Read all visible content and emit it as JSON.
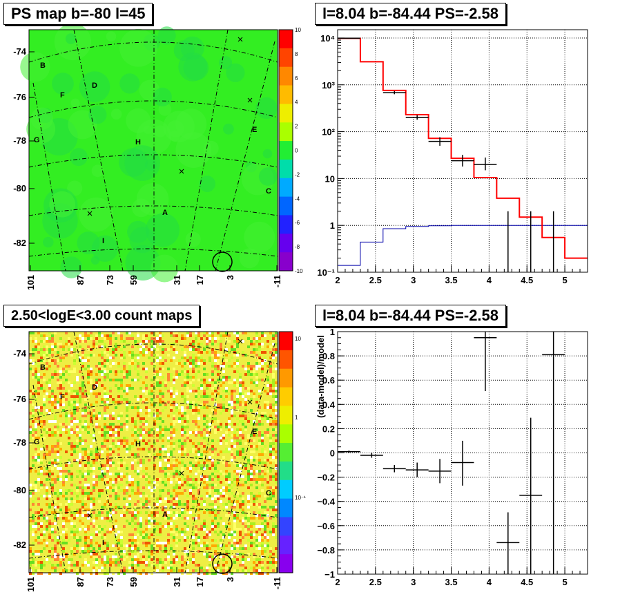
{
  "panels": {
    "ps_map": {
      "title": "PS map b=-80 l=45"
    },
    "spectrum": {
      "title": "l=8.04 b=-84.44 PS=-2.58"
    },
    "count_map": {
      "title": "2.50<logE<3.00 count maps"
    },
    "residual": {
      "title": "l=8.04 b=-84.44 PS=-2.58"
    }
  },
  "colors": {
    "map_green": "#22ee33",
    "model_red": "#ff0000",
    "bg_blue": "#0000aa",
    "data_black": "#000000"
  },
  "sky_map": {
    "x_tick_labels": [
      "101",
      "87",
      "73",
      "59",
      "31",
      "17",
      "3",
      "-11"
    ],
    "y_tick_labels": [
      "-74",
      "-76",
      "-78",
      "-80",
      "-82"
    ],
    "source_labels": [
      "B",
      "F",
      "D",
      "G",
      "H",
      "E",
      "C",
      "A",
      "I"
    ],
    "ps_palette_labels": [
      "10",
      "8",
      "6",
      "4",
      "2",
      "0",
      "-2",
      "-4",
      "-6",
      "-8",
      "-10"
    ],
    "count_palette_labels": [
      "10",
      "1",
      "10⁻¹"
    ]
  },
  "chart_data": [
    {
      "type": "histogram",
      "x_tick_labels": [
        "2",
        "2.5",
        "3",
        "3.5",
        "4",
        "4.5",
        "5"
      ],
      "y_tick_labels": [
        "10⁻¹",
        "1",
        "10",
        "10²",
        "10³",
        "10⁴"
      ],
      "y_scale": "log",
      "xlim": [
        2,
        5.3
      ],
      "ylim": [
        0.1,
        15000
      ],
      "grid": true,
      "model_bins": [
        [
          2.0,
          2.3,
          9800
        ],
        [
          2.3,
          2.6,
          3100
        ],
        [
          2.6,
          2.9,
          760
        ],
        [
          2.9,
          3.2,
          230
        ],
        [
          3.2,
          3.5,
          72
        ],
        [
          3.5,
          3.8,
          27
        ],
        [
          3.8,
          4.1,
          10.5
        ],
        [
          4.1,
          4.4,
          3.8
        ],
        [
          4.4,
          4.7,
          1.5
        ],
        [
          4.7,
          5.0,
          0.55
        ],
        [
          5.0,
          5.3,
          0.2
        ]
      ],
      "background_bins": [
        [
          2.0,
          2.3,
          0.14
        ],
        [
          2.3,
          2.6,
          0.44
        ],
        [
          2.6,
          2.9,
          0.85
        ],
        [
          2.9,
          3.2,
          0.95
        ],
        [
          3.2,
          3.5,
          0.98
        ],
        [
          3.5,
          3.8,
          1.0
        ],
        [
          3.8,
          4.1,
          1.0
        ],
        [
          4.1,
          4.4,
          1.0
        ],
        [
          4.4,
          4.7,
          1.0
        ],
        [
          4.7,
          5.0,
          1.0
        ],
        [
          5.0,
          5.3,
          1.0
        ]
      ],
      "data_points": [
        {
          "x": 2.15,
          "xerr": 0.15,
          "y": 9900,
          "ylo": 9700,
          "yhi": 10100
        },
        {
          "x": 2.75,
          "xerr": 0.15,
          "y": 680,
          "ylo": 630,
          "yhi": 730
        },
        {
          "x": 3.05,
          "xerr": 0.15,
          "y": 200,
          "ylo": 180,
          "yhi": 225
        },
        {
          "x": 3.35,
          "xerr": 0.15,
          "y": 62,
          "ylo": 50,
          "yhi": 76
        },
        {
          "x": 3.65,
          "xerr": 0.15,
          "y": 24,
          "ylo": 18,
          "yhi": 32
        },
        {
          "x": 3.95,
          "xerr": 0.15,
          "y": 20,
          "ylo": 15,
          "yhi": 28
        },
        {
          "x": 4.25,
          "xerr": 0.0,
          "y": 1.0,
          "ylo": 0.1,
          "yhi": 2.0
        },
        {
          "x": 4.55,
          "xerr": 0.0,
          "y": 1.0,
          "ylo": 0.1,
          "yhi": 2.0
        },
        {
          "x": 4.85,
          "xerr": 0.0,
          "y": 1.0,
          "ylo": 0.1,
          "yhi": 2.0
        }
      ]
    },
    {
      "type": "scatter",
      "x_tick_labels": [
        "2",
        "2.5",
        "3",
        "3.5",
        "4",
        "4.5",
        "5"
      ],
      "y_tick_labels": [
        "−1",
        "−0.8",
        "−0.6",
        "−0.4",
        "−0.2",
        "0",
        "0.2",
        "0.4",
        "0.6",
        "0.8",
        "1"
      ],
      "ylabel": "(data-model)/model",
      "xlim": [
        2,
        5.3
      ],
      "ylim": [
        -1,
        1
      ],
      "grid": true,
      "data_points": [
        {
          "x": 2.15,
          "xerr": 0.15,
          "y": 0.01,
          "ylo": 0.0,
          "yhi": 0.02
        },
        {
          "x": 2.45,
          "xerr": 0.15,
          "y": -0.02,
          "ylo": -0.04,
          "yhi": 0.0
        },
        {
          "x": 2.75,
          "xerr": 0.15,
          "y": -0.13,
          "ylo": -0.16,
          "yhi": -0.1
        },
        {
          "x": 3.05,
          "xerr": 0.15,
          "y": -0.14,
          "ylo": -0.2,
          "yhi": -0.08
        },
        {
          "x": 3.35,
          "xerr": 0.15,
          "y": -0.15,
          "ylo": -0.25,
          "yhi": -0.05
        },
        {
          "x": 3.65,
          "xerr": 0.15,
          "y": -0.08,
          "ylo": -0.27,
          "yhi": 0.1
        },
        {
          "x": 3.95,
          "xerr": 0.15,
          "y": 0.95,
          "ylo": 0.51,
          "yhi": 1.0
        },
        {
          "x": 4.25,
          "xerr": 0.15,
          "y": -0.74,
          "ylo": -1.0,
          "yhi": -0.49
        },
        {
          "x": 4.55,
          "xerr": 0.15,
          "y": -0.35,
          "ylo": -1.0,
          "yhi": 0.29
        },
        {
          "x": 4.85,
          "xerr": 0.15,
          "y": 0.81,
          "ylo": -1.0,
          "yhi": 1.0
        }
      ]
    }
  ]
}
